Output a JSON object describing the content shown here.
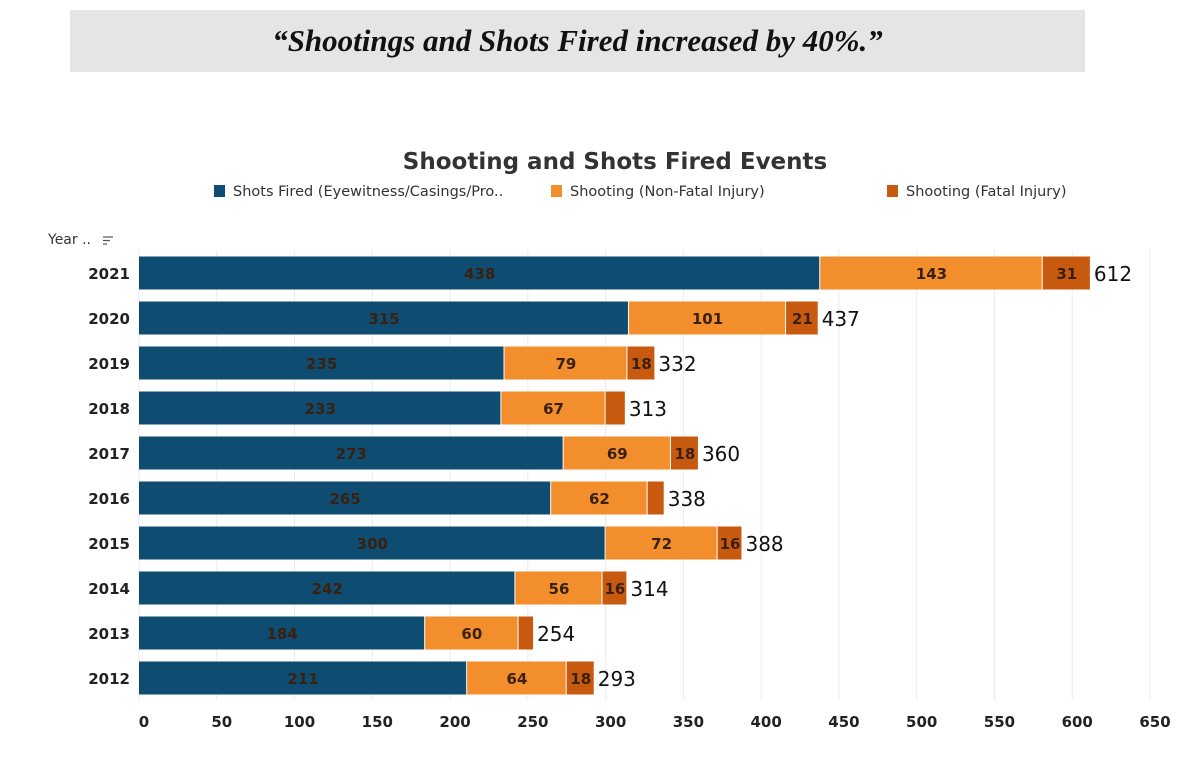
{
  "banner": {
    "quote": "“Shootings and Shots Fired increased by 40%.”"
  },
  "chart_data": {
    "type": "bar",
    "orientation": "horizontal",
    "stacked": true,
    "title": "Shooting and Shots Fired Events",
    "ylabel": "Year ..",
    "xlabel": "",
    "xlim": [
      0,
      650
    ],
    "xticks": [
      0,
      50,
      100,
      150,
      200,
      250,
      300,
      350,
      400,
      450,
      500,
      550,
      600,
      650
    ],
    "grid": true,
    "legend_position": "top",
    "categories": [
      "2021",
      "2020",
      "2019",
      "2018",
      "2017",
      "2016",
      "2015",
      "2014",
      "2013",
      "2012"
    ],
    "series": [
      {
        "name": "Shots Fired (Eyewitness/Casings/Pro..",
        "color": "#0e4d71",
        "values": [
          438,
          315,
          235,
          233,
          273,
          265,
          300,
          242,
          184,
          211
        ]
      },
      {
        "name": "Shooting (Non-Fatal Injury)",
        "color": "#f28e2b",
        "values": [
          143,
          101,
          79,
          67,
          69,
          62,
          72,
          56,
          60,
          64
        ]
      },
      {
        "name": "Shooting (Fatal Injury)",
        "color": "#c85a0f",
        "values": [
          31,
          21,
          18,
          13,
          18,
          11,
          16,
          16,
          10,
          18
        ]
      }
    ],
    "totals": [
      612,
      437,
      332,
      313,
      360,
      338,
      388,
      314,
      254,
      293
    ]
  }
}
